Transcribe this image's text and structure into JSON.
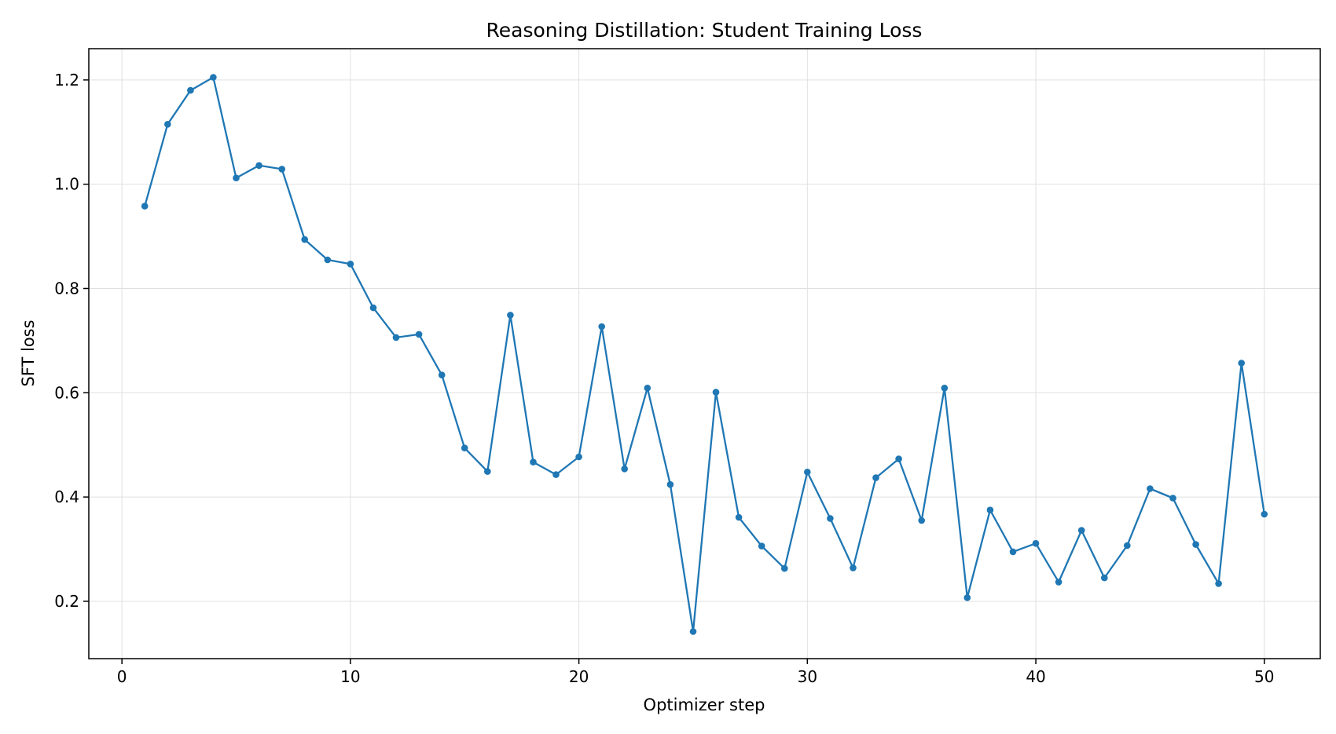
{
  "chart_data": {
    "type": "line",
    "title": "Reasoning Distillation: Student Training Loss",
    "xlabel": "Optimizer step",
    "ylabel": "SFT loss",
    "xlim": [
      -1.45,
      52.45
    ],
    "ylim": [
      0.09,
      1.26
    ],
    "xticks": [
      0,
      10,
      20,
      30,
      40,
      50
    ],
    "yticks": [
      0.2,
      0.4,
      0.6,
      0.8,
      1.0,
      1.2
    ],
    "xtick_labels": [
      "0",
      "10",
      "20",
      "30",
      "40",
      "50"
    ],
    "ytick_labels": [
      "0.2",
      "0.4",
      "0.6",
      "0.8",
      "1.0",
      "1.2"
    ],
    "grid": true,
    "color": "#1f77b4",
    "series": [
      {
        "x": [
          1,
          2,
          3,
          4,
          5,
          6,
          7,
          8,
          9,
          10,
          11,
          12,
          13,
          14,
          15,
          16,
          17,
          18,
          19,
          20,
          21,
          22,
          23,
          24,
          25,
          26,
          27,
          28,
          29,
          30,
          31,
          32,
          33,
          34,
          35,
          36,
          37,
          38,
          39,
          40,
          41,
          42,
          43,
          44,
          45,
          46,
          47,
          48,
          49,
          50
        ],
        "values": [
          0.958,
          1.115,
          1.18,
          1.205,
          1.012,
          1.036,
          1.029,
          0.894,
          0.855,
          0.847,
          0.763,
          0.706,
          0.712,
          0.634,
          0.494,
          0.449,
          0.749,
          0.467,
          0.443,
          0.477,
          0.727,
          0.454,
          0.609,
          0.424,
          0.142,
          0.601,
          0.361,
          0.306,
          0.263,
          0.448,
          0.359,
          0.264,
          0.437,
          0.473,
          0.355,
          0.609,
          0.207,
          0.375,
          0.295,
          0.311,
          0.237,
          0.336,
          0.245,
          0.307,
          0.416,
          0.398,
          0.309,
          0.234,
          0.657,
          0.367
        ]
      }
    ]
  }
}
